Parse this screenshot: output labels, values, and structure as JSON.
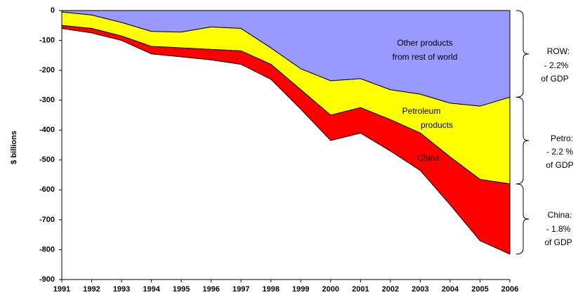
{
  "chart_data": {
    "type": "stacked_area",
    "y_label": "$ billions",
    "categories": [
      "1991",
      "1992",
      "1993",
      "1994",
      "1995",
      "1996",
      "1997",
      "1998",
      "1999",
      "2000",
      "2001",
      "2002",
      "2003",
      "2004",
      "2005",
      "2006"
    ],
    "series": [
      {
        "name": "Other products from rest of world",
        "color": "#9999ff",
        "values": [
          -5,
          -15,
          -40,
          -70,
          -72,
          -55,
          -60,
          -125,
          -195,
          -235,
          -228,
          -265,
          -280,
          -310,
          -320,
          -290
        ]
      },
      {
        "name": "Petroleum products",
        "color": "#ffff00",
        "values": [
          -45,
          -45,
          -45,
          -50,
          -53,
          -75,
          -75,
          -55,
          -70,
          -115,
          -97,
          -100,
          -130,
          -180,
          -245,
          -290
        ]
      },
      {
        "name": "China",
        "color": "#ff0000",
        "values": [
          -10,
          -15,
          -15,
          -25,
          -30,
          -35,
          -45,
          -50,
          -65,
          -85,
          -85,
          -105,
          -125,
          -160,
          -205,
          -235
        ]
      }
    ],
    "annotations": [
      "Other products",
      "from rest of world",
      "Petroleum",
      "products",
      "China",
      "ROW:",
      "- 2.2%",
      "of GDP",
      "Petro:",
      "- 2.2 %",
      "of GDP",
      "China:",
      "- 1.8%",
      "of GDP"
    ],
    "ylim": [
      -900,
      0
    ],
    "yticks": [
      0,
      -100,
      -200,
      -300,
      -400,
      -500,
      -600,
      -700,
      -800,
      -900
    ]
  }
}
